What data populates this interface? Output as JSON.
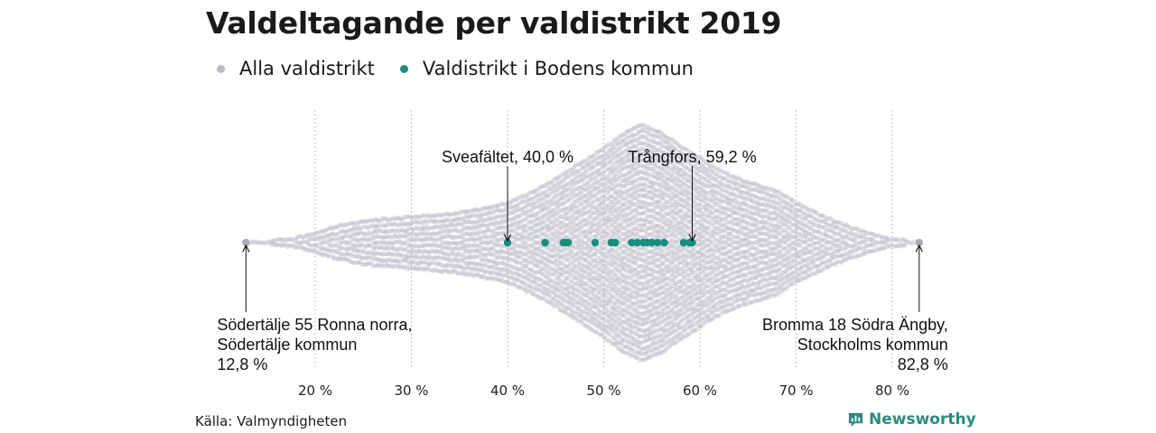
{
  "title": "Valdeltagande per valdistrikt 2019",
  "legend": [
    {
      "label": "Alla valdistrikt",
      "color": "#b9bac6"
    },
    {
      "label": "Valdistrikt i Bodens kommun",
      "color": "#1a8c80"
    }
  ],
  "source": "Källa: Valmyndigheten",
  "brand": "Newsworthy",
  "chart_data": {
    "type": "scatter",
    "subtype": "beeswarm",
    "xlim": [
      12,
      83.5
    ],
    "x_ticks": [
      20,
      30,
      40,
      50,
      60,
      70,
      80
    ],
    "x_tick_labels": [
      "20 %",
      "30 %",
      "40 %",
      "50 %",
      "60 %",
      "70 %",
      "80 %"
    ],
    "grid": "vertical dotted",
    "legend_position": "top-left",
    "series": [
      {
        "name": "Alla valdistrikt",
        "color": "#b9bac6",
        "distribution": {
          "min": 12.8,
          "max": 82.8,
          "x": [
            14,
            16,
            18,
            20,
            22,
            25,
            28,
            31,
            34,
            37,
            40,
            42,
            44,
            46,
            48,
            50,
            52,
            54,
            56,
            58,
            60,
            62,
            64,
            66,
            68,
            70,
            72,
            74,
            76,
            78,
            80,
            82
          ],
          "relative_density": [
            0.03,
            0.04,
            0.06,
            0.1,
            0.15,
            0.2,
            0.22,
            0.24,
            0.26,
            0.3,
            0.35,
            0.42,
            0.5,
            0.6,
            0.7,
            0.8,
            0.92,
            1.0,
            0.93,
            0.82,
            0.72,
            0.62,
            0.55,
            0.5,
            0.45,
            0.35,
            0.27,
            0.2,
            0.14,
            0.09,
            0.05,
            0.03
          ]
        }
      },
      {
        "name": "Valdistrikt i Bodens kommun",
        "color": "#1a8c80",
        "values": [
          40.0,
          43.9,
          45.8,
          46.1,
          46.3,
          49.1,
          50.8,
          51.2,
          52.9,
          53.5,
          54.1,
          54.5,
          55.0,
          55.6,
          56.3,
          58.3,
          58.9,
          59.2
        ]
      }
    ],
    "annotations": [
      {
        "lines": [
          "Sveafältet, 40,0 %"
        ],
        "x": 40.0,
        "align": "middle",
        "pos": "above"
      },
      {
        "lines": [
          "Trångfors, 59,2 %"
        ],
        "x": 59.2,
        "align": "middle",
        "pos": "above"
      },
      {
        "lines": [
          "Södertälje 55 Ronna norra,",
          "Södertälje kommun",
          "12,8 %"
        ],
        "x": 12.8,
        "align": "start",
        "pos": "below"
      },
      {
        "lines": [
          "Bromma 18 Södra Ängby,",
          "Stockholms kommun",
          "82,8 %"
        ],
        "x": 82.8,
        "align": "end",
        "pos": "below"
      }
    ]
  }
}
